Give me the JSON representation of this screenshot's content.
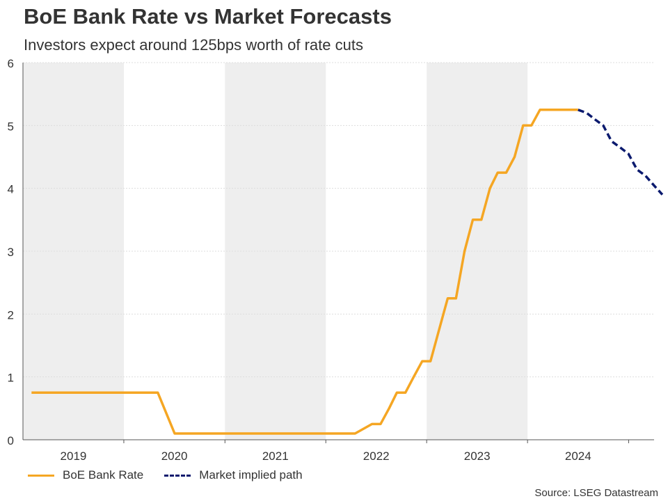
{
  "title": "BoE Bank Rate vs Market Forecasts",
  "subtitle": "Investors expect around 125bps worth of rate cuts",
  "source": "Source: LSEG Datastream",
  "colors": {
    "bank_rate": "#f5a623",
    "market_path": "#0b1a6e",
    "shade": "#eeeeee",
    "grid": "#dddddd",
    "axis": "#555555"
  },
  "chart_data": {
    "type": "line",
    "ylim": [
      0,
      6
    ],
    "yticks": [
      0,
      1,
      2,
      3,
      4,
      5,
      6
    ],
    "xlim": [
      "2018-07-01",
      "2024-10-01"
    ],
    "years": [
      {
        "label": "2019",
        "start": "2018-07-01",
        "end": "2019-07-01",
        "shaded": true
      },
      {
        "label": "2020",
        "start": "2019-07-01",
        "end": "2020-07-01",
        "shaded": false
      },
      {
        "label": "2021",
        "start": "2020-07-01",
        "end": "2021-07-01",
        "shaded": true
      },
      {
        "label": "2022",
        "start": "2021-07-01",
        "end": "2022-07-01",
        "shaded": false
      },
      {
        "label": "2023",
        "start": "2022-07-01",
        "end": "2023-07-01",
        "shaded": true
      },
      {
        "label": "2024",
        "start": "2023-07-01",
        "end": "2024-07-01",
        "shaded": false
      }
    ],
    "grid": true,
    "legend_position": "bottom-left",
    "series": [
      {
        "name": "BoE Bank Rate",
        "style": "solid",
        "points": [
          [
            "2018-08-01",
            0.75
          ],
          [
            "2019-11-01",
            0.75
          ],
          [
            "2020-01-01",
            0.1
          ],
          [
            "2021-10-15",
            0.1
          ],
          [
            "2021-12-15",
            0.25
          ],
          [
            "2022-01-15",
            0.25
          ],
          [
            "2022-02-15",
            0.5
          ],
          [
            "2022-03-15",
            0.75
          ],
          [
            "2022-04-15",
            0.75
          ],
          [
            "2022-05-15",
            1.0
          ],
          [
            "2022-06-15",
            1.25
          ],
          [
            "2022-07-15",
            1.25
          ],
          [
            "2022-08-15",
            1.75
          ],
          [
            "2022-09-15",
            2.25
          ],
          [
            "2022-10-15",
            2.25
          ],
          [
            "2022-11-15",
            3.0
          ],
          [
            "2022-12-15",
            3.5
          ],
          [
            "2023-01-15",
            3.5
          ],
          [
            "2023-02-15",
            4.0
          ],
          [
            "2023-03-15",
            4.25
          ],
          [
            "2023-04-15",
            4.25
          ],
          [
            "2023-05-15",
            4.5
          ],
          [
            "2023-06-15",
            5.0
          ],
          [
            "2023-07-15",
            5.0
          ],
          [
            "2023-08-15",
            5.25
          ],
          [
            "2023-12-31",
            5.25
          ]
        ]
      },
      {
        "name": "Market implied path",
        "style": "dashed",
        "points": [
          [
            "2023-12-31",
            5.25
          ],
          [
            "2024-01-31",
            5.2
          ],
          [
            "2024-02-29",
            5.1
          ],
          [
            "2024-03-31",
            5.0
          ],
          [
            "2024-04-30",
            4.75
          ],
          [
            "2024-05-31",
            4.65
          ],
          [
            "2024-06-30",
            4.55
          ],
          [
            "2024-07-31",
            4.3
          ],
          [
            "2024-08-31",
            4.2
          ],
          [
            "2024-09-30",
            4.05
          ],
          [
            "2024-10-31",
            3.9
          ]
        ]
      }
    ]
  }
}
